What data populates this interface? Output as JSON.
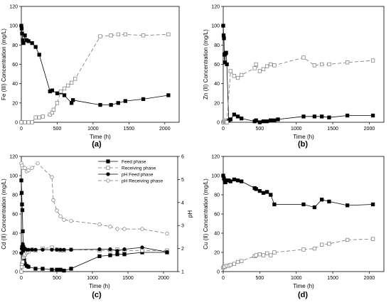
{
  "chart_data": [
    {
      "panel_label": "(a)",
      "type": "line",
      "xlabel": "Time (h)",
      "ylabel": "Fe (III) Concentration (mg/L)",
      "xlim": [
        0,
        2200
      ],
      "ylim": [
        0,
        120
      ],
      "xticks": [
        0,
        500,
        1000,
        1500,
        2000
      ],
      "yticks": [
        0,
        20,
        40,
        60,
        80,
        100,
        120
      ],
      "series": [
        {
          "style": "filled-square-solid",
          "x": [
            0,
            5,
            10,
            20,
            30,
            50,
            75,
            100,
            150,
            200,
            250,
            400,
            430,
            500,
            550,
            600,
            700,
            720,
            1100,
            1250,
            1350,
            1450,
            1700,
            2050
          ],
          "y": [
            100,
            97,
            92,
            85,
            82,
            90,
            85,
            84,
            82,
            78,
            70,
            32,
            33,
            30,
            31,
            28,
            20,
            23,
            18,
            18,
            20,
            22,
            24,
            28
          ]
        },
        {
          "style": "open-square-dashed",
          "x": [
            0,
            50,
            100,
            150,
            200,
            250,
            300,
            400,
            430,
            450,
            500,
            550,
            600,
            650,
            700,
            750,
            1100,
            1250,
            1350,
            1450,
            1700,
            2050
          ],
          "y": [
            0,
            0,
            0,
            0,
            5,
            5,
            6,
            8,
            10,
            13,
            20,
            32,
            35,
            38,
            41,
            45,
            89,
            90,
            91,
            91,
            90,
            91
          ]
        }
      ]
    },
    {
      "panel_label": "(b)",
      "type": "line",
      "xlabel": "Time (h)",
      "ylabel": "Zn (II) Concentration (mg/L)",
      "xlim": [
        0,
        2200
      ],
      "ylim": [
        0,
        120
      ],
      "xticks": [
        0,
        500,
        1000,
        1500,
        2000
      ],
      "yticks": [
        0,
        20,
        40,
        60,
        80,
        100,
        120
      ],
      "series": [
        {
          "style": "filled-square-solid",
          "x": [
            0,
            5,
            10,
            15,
            20,
            30,
            40,
            50,
            75,
            100,
            150,
            200,
            250,
            430,
            450,
            500,
            550,
            600,
            650,
            700,
            750,
            1100,
            1250,
            1350,
            1450,
            1700,
            2050
          ],
          "y": [
            100,
            90,
            87,
            70,
            62,
            71,
            72,
            60,
            2,
            3,
            8,
            6,
            4,
            1,
            2,
            0,
            1,
            1,
            2,
            2,
            3,
            6,
            6,
            6,
            5,
            7,
            7
          ]
        },
        {
          "style": "open-square-dashed",
          "x": [
            0,
            10,
            20,
            30,
            40,
            50,
            100,
            150,
            200,
            250,
            430,
            450,
            500,
            550,
            600,
            650,
            700,
            1100,
            1250,
            1350,
            1450,
            1700,
            2050
          ],
          "y": [
            0,
            1,
            2,
            1,
            0,
            0,
            53,
            48,
            46,
            49,
            56,
            60,
            53,
            55,
            58,
            60,
            59,
            67,
            59,
            60,
            60,
            62,
            64
          ]
        }
      ]
    },
    {
      "panel_label": "(c)",
      "type": "line",
      "xlabel": "Time (h)",
      "ylabel": "Cd (II) Concentration (mg/L)",
      "y2label": "pH",
      "xlim": [
        0,
        2200
      ],
      "ylim": [
        0,
        120
      ],
      "y2lim": [
        1,
        6
      ],
      "xticks": [
        0,
        500,
        1000,
        1500,
        2000
      ],
      "yticks": [
        0,
        20,
        40,
        60,
        80,
        100,
        120
      ],
      "y2ticks": [
        1,
        2,
        3,
        4,
        5,
        6
      ],
      "legend_position": "top-right",
      "series": [
        {
          "name": "Feed phase",
          "axis": "left",
          "style": "filled-square-solid",
          "x": [
            0,
            5,
            10,
            15,
            20,
            30,
            40,
            50,
            75,
            100,
            200,
            300,
            430,
            500,
            550,
            600,
            700,
            1100,
            1250,
            1350,
            1450,
            1700,
            2050
          ],
          "y": [
            95,
            82,
            70,
            64,
            42,
            22,
            12,
            8,
            6,
            5,
            3,
            3,
            2,
            2,
            2,
            1,
            3,
            16,
            17,
            18,
            18,
            20,
            20
          ]
        },
        {
          "name": "Receiving phase",
          "axis": "left",
          "style": "open-square-dashed",
          "x": [
            0,
            5,
            10,
            20,
            30,
            40,
            50,
            75,
            100,
            150,
            200,
            300,
            430,
            500,
            550,
            600,
            700,
            1100,
            1250,
            1350,
            1450,
            1700,
            2050
          ],
          "y": [
            0,
            5,
            8,
            10,
            15,
            17,
            18,
            20,
            21,
            23,
            22,
            24,
            25,
            23,
            22,
            22,
            23,
            22,
            22,
            23,
            22,
            22,
            22
          ]
        },
        {
          "name": "pH Feed phase",
          "axis": "right",
          "style": "filled-circle-solid",
          "x": [
            0,
            5,
            10,
            20,
            30,
            50,
            75,
            100,
            150,
            200,
            300,
            430,
            500,
            550,
            600,
            700,
            1100,
            1250,
            1350,
            1450,
            1700,
            2050
          ],
          "y": [
            1.8,
            2.0,
            2.1,
            2.2,
            2.1,
            2.0,
            1.95,
            1.95,
            1.95,
            1.95,
            1.95,
            1.95,
            1.95,
            1.95,
            1.95,
            1.95,
            1.97,
            1.97,
            1.9,
            1.97,
            2.05,
            1.85
          ]
        },
        {
          "name": "pH Receiving phase",
          "axis": "right",
          "style": "open-circle-dashed",
          "x": [
            0,
            10,
            20,
            50,
            75,
            100,
            150,
            230,
            430,
            450,
            500,
            550,
            600,
            700,
            1100,
            1250,
            1350,
            1450,
            1700,
            2050
          ],
          "y": [
            5.7,
            5.6,
            5.5,
            5.5,
            5.35,
            5.4,
            5.5,
            5.7,
            5.1,
            4.1,
            3.65,
            3.4,
            3.25,
            3.2,
            3.05,
            2.95,
            2.85,
            2.85,
            2.85,
            2.65
          ]
        }
      ]
    },
    {
      "panel_label": "(d)",
      "type": "line",
      "xlabel": "Time (h)",
      "ylabel": "Cu (II) Concentration (mg/L)",
      "xlim": [
        0,
        2200
      ],
      "ylim": [
        0,
        120
      ],
      "xticks": [
        0,
        500,
        1000,
        1500,
        2000
      ],
      "yticks": [
        0,
        20,
        40,
        60,
        80,
        100,
        120
      ],
      "series": [
        {
          "style": "filled-square-solid",
          "x": [
            0,
            10,
            20,
            30,
            50,
            75,
            100,
            150,
            200,
            250,
            430,
            450,
            500,
            550,
            600,
            650,
            700,
            1100,
            1250,
            1350,
            1450,
            1700,
            2050
          ],
          "y": [
            100,
            97,
            95,
            93,
            95,
            95,
            94,
            96,
            95,
            94,
            87,
            86,
            84,
            82,
            83,
            80,
            70,
            70,
            67,
            75,
            73,
            69,
            70
          ]
        },
        {
          "style": "open-square-dashed",
          "x": [
            0,
            10,
            20,
            50,
            75,
            100,
            150,
            200,
            250,
            430,
            450,
            500,
            550,
            600,
            650,
            700,
            1100,
            1250,
            1350,
            1450,
            1700,
            2050
          ],
          "y": [
            4,
            5,
            5,
            6,
            6,
            7,
            8,
            10,
            11,
            16,
            17,
            18,
            17,
            19,
            17,
            20,
            23,
            24,
            28,
            29,
            33,
            34
          ]
        }
      ]
    }
  ]
}
